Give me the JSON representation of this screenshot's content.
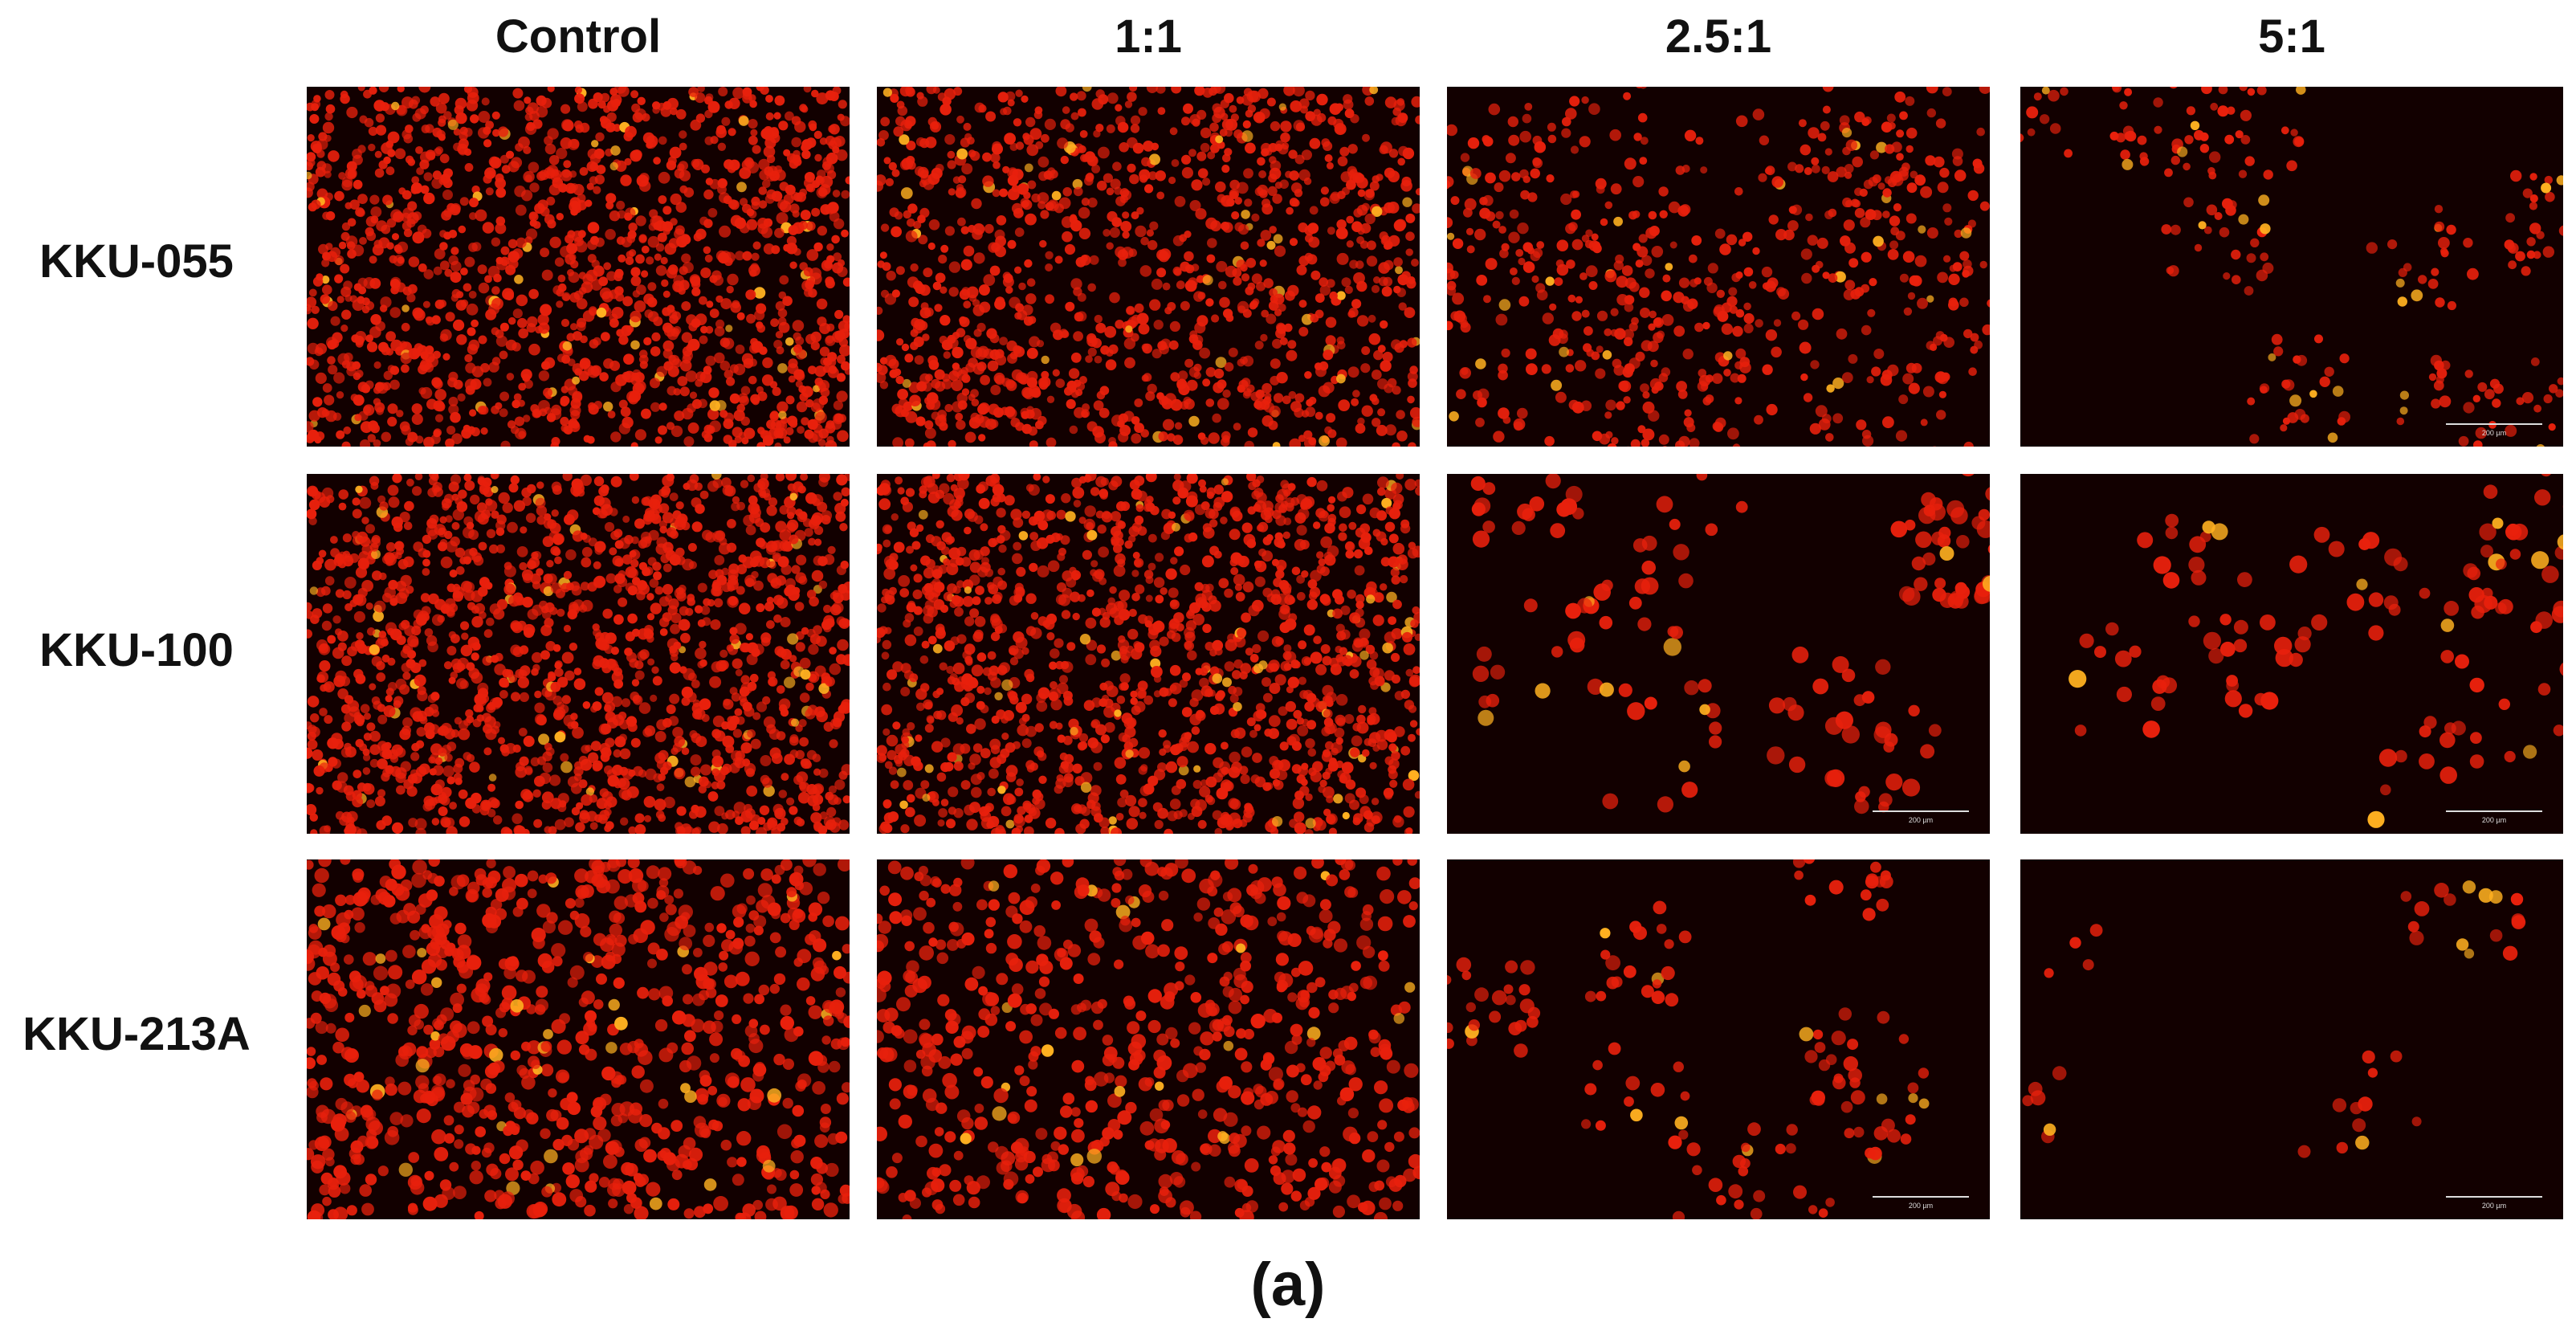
{
  "columns": [
    "Control",
    "1:1",
    "2.5:1",
    "5:1"
  ],
  "rows": [
    "KKU-055",
    "KKU-100",
    "KKU-213A"
  ],
  "caption": "(a)",
  "scale_bar_label": "200 µm",
  "panels": [
    [
      {
        "density": 0.95,
        "cell_size": "small",
        "scale_bar": false
      },
      {
        "density": 0.75,
        "cell_size": "small",
        "scale_bar": false
      },
      {
        "density": 0.45,
        "cell_size": "small",
        "scale_bar": false
      },
      {
        "density": 0.15,
        "cell_size": "small",
        "scale_bar": true
      }
    ],
    [
      {
        "density": 1.0,
        "cell_size": "small",
        "scale_bar": false
      },
      {
        "density": 0.9,
        "cell_size": "small",
        "scale_bar": false
      },
      {
        "density": 0.22,
        "cell_size": "large",
        "scale_bar": true
      },
      {
        "density": 0.18,
        "cell_size": "large",
        "scale_bar": true
      }
    ],
    [
      {
        "density": 0.85,
        "cell_size": "medium",
        "scale_bar": false
      },
      {
        "density": 0.65,
        "cell_size": "medium",
        "scale_bar": false
      },
      {
        "density": 0.14,
        "cell_size": "medium",
        "scale_bar": true
      },
      {
        "density": 0.04,
        "cell_size": "medium",
        "scale_bar": true
      }
    ]
  ],
  "colors": {
    "background": "#120000",
    "cell": "#e8200c",
    "bright_cell": "#ffb020"
  }
}
